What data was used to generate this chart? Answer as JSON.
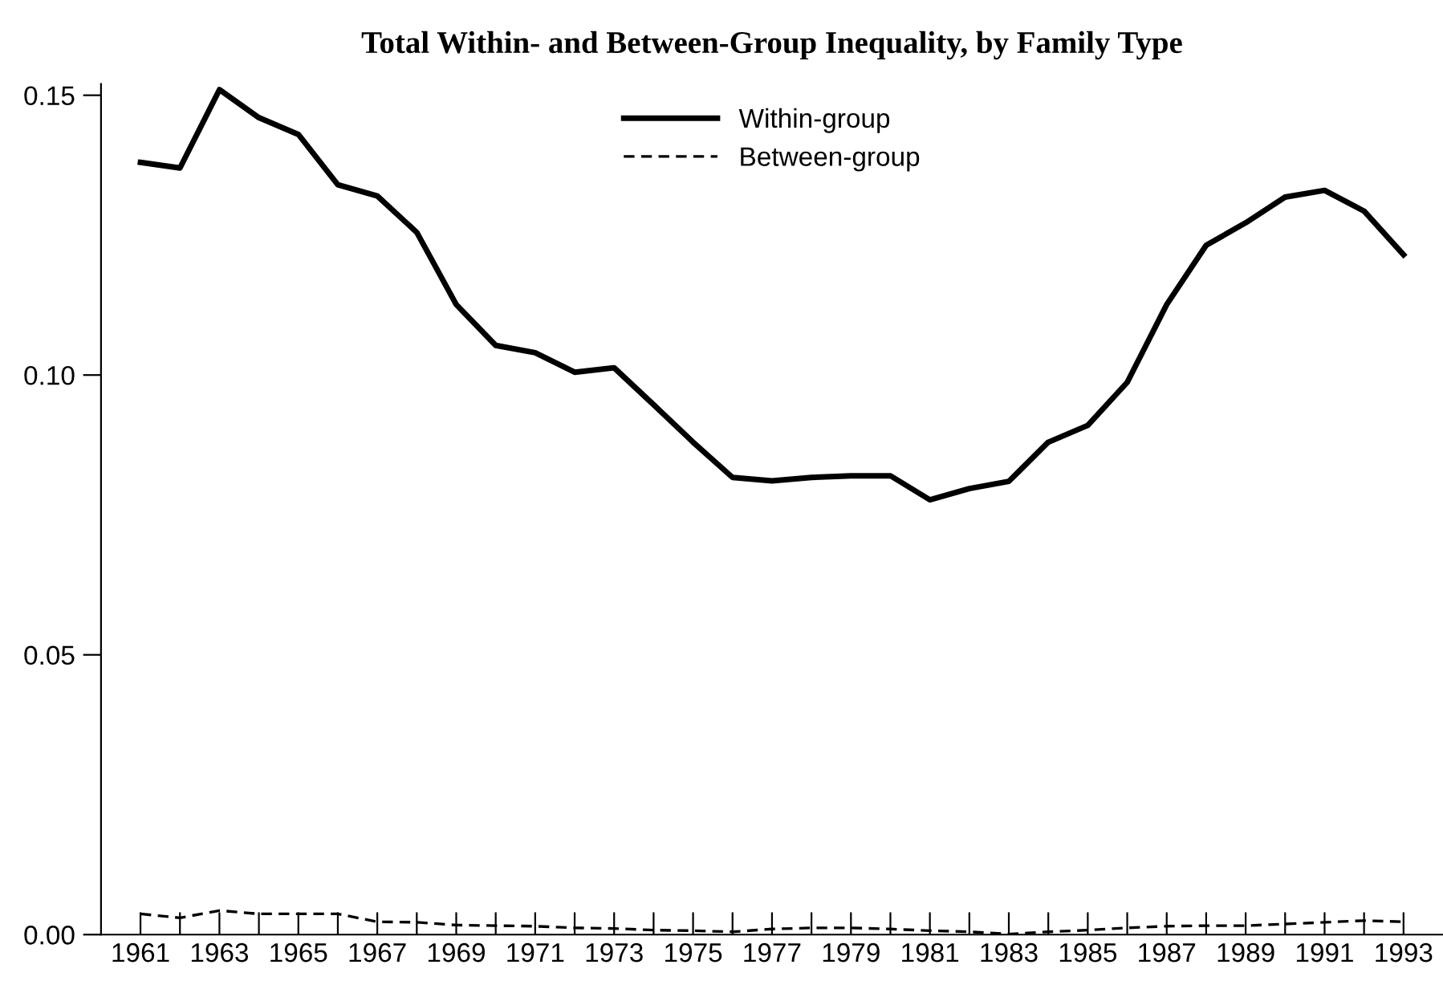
{
  "chart_data": {
    "type": "line",
    "title": "Total Within- and Between-Group Inequality, by Family Type",
    "x": [
      1961,
      1962,
      1963,
      1964,
      1965,
      1966,
      1967,
      1968,
      1969,
      1970,
      1971,
      1972,
      1973,
      1974,
      1975,
      1976,
      1977,
      1978,
      1979,
      1980,
      1981,
      1982,
      1983,
      1984,
      1985,
      1986,
      1987,
      1988,
      1989,
      1990,
      1991,
      1992,
      1993
    ],
    "series": [
      {
        "name": "Within-group",
        "color": "#000000",
        "line_style": "solid",
        "values": [
          0.138,
          0.137,
          0.151,
          0.146,
          0.143,
          0.134,
          0.132,
          0.1255,
          0.1126,
          0.1053,
          0.104,
          0.1005,
          0.1013,
          0.0947,
          0.088,
          0.0817,
          0.0811,
          0.0817,
          0.082,
          0.082,
          0.0777,
          0.0797,
          0.081,
          0.088,
          0.091,
          0.0987,
          0.1126,
          0.1232,
          0.1272,
          0.1318,
          0.133,
          0.1293,
          0.1215
        ]
      },
      {
        "name": "Between-group",
        "color": "#000000",
        "line_style": "dashed",
        "values": [
          0.0037,
          0.003,
          0.0043,
          0.0037,
          0.0037,
          0.0037,
          0.0023,
          0.0022,
          0.0017,
          0.0016,
          0.0015,
          0.0012,
          0.0011,
          0.0008,
          0.0007,
          0.0005,
          0.001,
          0.0012,
          0.0012,
          0.001,
          0.0007,
          0.0005,
          0.0001,
          0.0005,
          0.0008,
          0.0012,
          0.0015,
          0.0016,
          0.0016,
          0.0019,
          0.0022,
          0.0025,
          0.0023
        ]
      }
    ],
    "xlim": [
      1960,
      1994
    ],
    "ylim": [
      0,
      0.152
    ],
    "xticks": [
      1961,
      {
        "value": 1962,
        "label": null
      },
      1963,
      {
        "value": 1964,
        "label": null
      },
      1965,
      {
        "value": 1966,
        "label": null
      },
      1967,
      {
        "value": 1968,
        "label": null
      },
      1969,
      {
        "value": 1970,
        "label": null
      },
      1971,
      {
        "value": 1972,
        "label": null
      },
      1973,
      {
        "value": 1974,
        "label": null
      },
      1975,
      {
        "value": 1976,
        "label": null
      },
      1977,
      {
        "value": 1978,
        "label": null
      },
      1979,
      {
        "value": 1980,
        "label": null
      },
      1981,
      {
        "value": 1982,
        "label": null
      },
      1983,
      {
        "value": 1984,
        "label": null
      },
      1985,
      {
        "value": 1986,
        "label": null
      },
      1987,
      {
        "value": 1988,
        "label": null
      },
      1989,
      {
        "value": 1990,
        "label": null
      },
      1991,
      {
        "value": 1992,
        "label": null
      },
      1993
    ],
    "yticks": [
      {
        "value": 0,
        "label": "0.00"
      },
      {
        "value": 0.05,
        "label": "0.05"
      },
      {
        "value": 0.1,
        "label": "0.10"
      },
      {
        "value": 0.15,
        "label": "0.15"
      }
    ],
    "grid": false,
    "legend": "top",
    "marker": "none"
  }
}
